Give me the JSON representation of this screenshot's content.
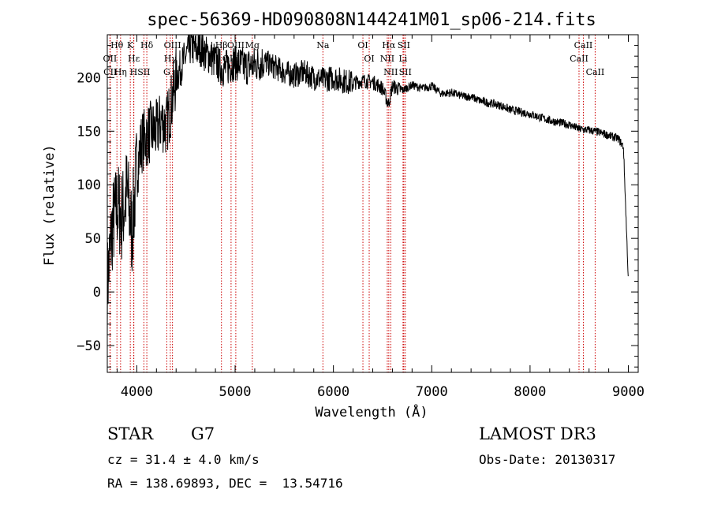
{
  "chart_data": {
    "type": "line",
    "title": "spec-56369-HD090808N144241M01_sp06-214.fits",
    "xlabel": "Wavelength (Å)",
    "ylabel": "Flux (relative)",
    "xlim": [
      3700,
      9100
    ],
    "ylim": [
      -75,
      240
    ],
    "xticks": [
      4000,
      5000,
      6000,
      7000,
      8000,
      9000
    ],
    "yticks": [
      -50,
      0,
      50,
      100,
      150,
      200
    ],
    "series": [
      {
        "name": "flux",
        "x": [
          3700,
          3750,
          3800,
          3850,
          3900,
          3950,
          4000,
          4050,
          4100,
          4150,
          4200,
          4250,
          4300,
          4350,
          4400,
          4450,
          4500,
          4550,
          4600,
          4650,
          4700,
          4750,
          4800,
          4850,
          4900,
          4950,
          5000,
          5100,
          5200,
          5300,
          5400,
          5500,
          5600,
          5700,
          5800,
          5900,
          6000,
          6100,
          6200,
          6300,
          6400,
          6500,
          6560,
          6600,
          6700,
          6800,
          6900,
          7000,
          7100,
          7200,
          7300,
          7400,
          7500,
          7600,
          7700,
          7800,
          7900,
          8000,
          8100,
          8200,
          8300,
          8400,
          8500,
          8600,
          8700,
          8800,
          8900,
          8950,
          9000
        ],
        "y": [
          5,
          60,
          80,
          70,
          95,
          55,
          115,
          140,
          145,
          150,
          150,
          160,
          155,
          175,
          200,
          210,
          220,
          230,
          225,
          228,
          222,
          220,
          215,
          210,
          208,
          212,
          215,
          210,
          212,
          215,
          210,
          205,
          202,
          205,
          200,
          198,
          200,
          197,
          195,
          197,
          196,
          190,
          175,
          192,
          188,
          193,
          190,
          192,
          185,
          186,
          183,
          182,
          178,
          176,
          174,
          170,
          168,
          166,
          163,
          160,
          158,
          156,
          152,
          151,
          149,
          146,
          143,
          135,
          10
        ]
      }
    ],
    "lines": [
      {
        "name": "Hθ",
        "wave": 3798
      },
      {
        "name": "OII",
        "wave": 3727
      },
      {
        "name": "Hη",
        "wave": 3835
      },
      {
        "name": "CII",
        "wave": 3730
      },
      {
        "name": "K",
        "wave": 3934
      },
      {
        "name": "Hε",
        "wave": 3970
      },
      {
        "name": "H",
        "wave": 3968
      },
      {
        "name": "SII",
        "wave": 4072
      },
      {
        "name": "Hδ",
        "wave": 4102
      },
      {
        "name": "OIII",
        "wave": 4363
      },
      {
        "name": "Hγ",
        "wave": 4341
      },
      {
        "name": "G",
        "wave": 4305
      },
      {
        "name": "OIII",
        "wave": 5007
      },
      {
        "name": "OIII",
        "wave": 4959
      },
      {
        "name": "Hβ",
        "wave": 4861
      },
      {
        "name": "Mg",
        "wave": 5175
      },
      {
        "name": "Na",
        "wave": 5893
      },
      {
        "name": "OI",
        "wave": 6300
      },
      {
        "name": "OI",
        "wave": 6364
      },
      {
        "name": "Hα",
        "wave": 6563
      },
      {
        "name": "SII",
        "wave": 6716
      },
      {
        "name": "NII",
        "wave": 6548
      },
      {
        "name": "Li",
        "wave": 6708
      },
      {
        "name": "NII",
        "wave": 6583
      },
      {
        "name": "SII",
        "wave": 6731
      },
      {
        "name": "CaII",
        "wave": 8542
      },
      {
        "name": "CaII",
        "wave": 8498
      },
      {
        "name": "CaII",
        "wave": 8662
      }
    ]
  },
  "info": {
    "object_type": "STAR",
    "subclass": "G7",
    "survey": "LAMOST DR3",
    "cz": "cz = 31.4 ± 4.0 km/s",
    "obs_date": "Obs-Date: 20130317",
    "coords": "RA = 138.69893, DEC =  13.54716"
  },
  "colors": {
    "spectrum": "#000000",
    "line_marker": "#cc0000",
    "axis": "#000000"
  }
}
